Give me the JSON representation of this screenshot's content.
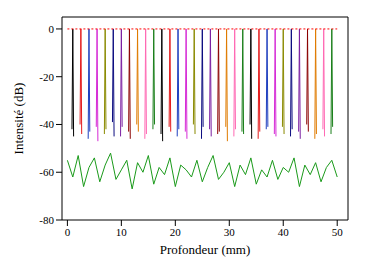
{
  "chart_data": {
    "type": "line",
    "x_label": "Profondeur (mm)",
    "y_label": "Intensité (dB)",
    "xlim": [
      -1,
      52
    ],
    "xticks": [
      0,
      10,
      20,
      30,
      40,
      50
    ],
    "ylim": [
      -80,
      5
    ],
    "yticks": [
      -80,
      -60,
      -40,
      -20,
      0
    ],
    "grid": false,
    "series": [
      {
        "color": "#1a9a1a",
        "x": [
          0,
          1,
          2,
          3,
          4,
          5,
          6,
          7,
          8,
          9,
          10,
          11,
          12,
          13,
          14,
          15,
          16,
          17,
          18,
          19,
          20,
          21,
          22,
          23,
          24,
          25,
          26,
          27,
          28,
          29,
          30,
          31,
          32,
          33,
          34,
          35,
          36,
          37,
          38,
          39,
          40,
          41,
          42,
          43,
          44,
          45,
          46,
          47,
          48,
          49,
          50
        ],
        "values": [
          -55,
          -62,
          -53,
          -66,
          -58,
          -54,
          -64,
          -57,
          -52,
          -63,
          -59,
          -55,
          -67,
          -56,
          -60,
          -53,
          -65,
          -58,
          -61,
          -54,
          -66,
          -57,
          -59,
          -62,
          -55,
          -64,
          -58,
          -53,
          -63,
          -60,
          -56,
          -66,
          -57,
          -61,
          -54,
          -65,
          -59,
          -62,
          -55,
          -63,
          -58,
          -60,
          -54,
          -66,
          -57,
          -61,
          -56,
          -64,
          -58,
          -55,
          -62
        ]
      },
      {
        "color": "#000000",
        "x": [
          0.85,
          1,
          1.15
        ],
        "values": [
          -42,
          0,
          -45
        ]
      },
      {
        "color": "#e41a1c",
        "x": [
          2.35,
          2.5,
          2.65
        ],
        "values": [
          -40,
          0,
          -44
        ]
      },
      {
        "color": "#1f3fbf",
        "x": [
          3.85,
          4,
          4.15
        ],
        "values": [
          -46,
          0,
          -43
        ]
      },
      {
        "color": "#d62ad6",
        "x": [
          5.35,
          5.5,
          5.65
        ],
        "values": [
          -41,
          0,
          -47
        ]
      },
      {
        "color": "#8a8a00",
        "x": [
          6.85,
          7,
          7.15
        ],
        "values": [
          -44,
          0,
          -42
        ]
      },
      {
        "color": "#0b0b80",
        "x": [
          8.35,
          8.5,
          8.65
        ],
        "values": [
          -39,
          0,
          -45
        ]
      },
      {
        "color": "#7b1fa2",
        "x": [
          9.85,
          10,
          10.15
        ],
        "values": [
          -45,
          0,
          -41
        ]
      },
      {
        "color": "#8b0000",
        "x": [
          11.35,
          11.5,
          11.65
        ],
        "values": [
          -43,
          0,
          -46
        ]
      },
      {
        "color": "#e07b00",
        "x": [
          12.85,
          13,
          13.15
        ],
        "values": [
          -40,
          0,
          -43
        ]
      },
      {
        "color": "#ff69b4",
        "x": [
          14.35,
          14.5,
          14.65
        ],
        "values": [
          -46,
          0,
          -44
        ]
      },
      {
        "color": "#1a7f1a",
        "x": [
          15.85,
          16,
          16.15
        ],
        "values": [
          -42,
          0,
          -40
        ]
      },
      {
        "color": "#000000",
        "x": [
          17.35,
          17.5,
          17.65
        ],
        "values": [
          -44,
          0,
          -47
        ]
      },
      {
        "color": "#e41a1c",
        "x": [
          18.85,
          19,
          19.15
        ],
        "values": [
          -41,
          0,
          -43
        ]
      },
      {
        "color": "#1f3fbf",
        "x": [
          20.35,
          20.5,
          20.65
        ],
        "values": [
          -45,
          0,
          -42
        ]
      },
      {
        "color": "#d62ad6",
        "x": [
          21.85,
          22,
          22.15
        ],
        "values": [
          -43,
          0,
          -46
        ]
      },
      {
        "color": "#8a8a00",
        "x": [
          23.35,
          23.5,
          23.65
        ],
        "values": [
          -40,
          0,
          -44
        ]
      },
      {
        "color": "#0b0b80",
        "x": [
          24.85,
          25,
          25.15
        ],
        "values": [
          -46,
          0,
          -41
        ]
      },
      {
        "color": "#7b1fa2",
        "x": [
          26.35,
          26.5,
          26.65
        ],
        "values": [
          -42,
          0,
          -45
        ]
      },
      {
        "color": "#8b0000",
        "x": [
          27.85,
          28,
          28.15
        ],
        "values": [
          -44,
          0,
          -43
        ]
      },
      {
        "color": "#e07b00",
        "x": [
          29.35,
          29.5,
          29.65
        ],
        "values": [
          -41,
          0,
          -47
        ]
      },
      {
        "color": "#ff69b4",
        "x": [
          30.85,
          31,
          31.15
        ],
        "values": [
          -45,
          0,
          -42
        ]
      },
      {
        "color": "#1a7f1a",
        "x": [
          32.35,
          32.5,
          32.65
        ],
        "values": [
          -43,
          0,
          -44
        ]
      },
      {
        "color": "#000000",
        "x": [
          33.85,
          34,
          34.15
        ],
        "values": [
          -40,
          0,
          -46
        ]
      },
      {
        "color": "#e41a1c",
        "x": [
          35.35,
          35.5,
          35.65
        ],
        "values": [
          -46,
          0,
          -43
        ]
      },
      {
        "color": "#1f3fbf",
        "x": [
          36.85,
          37,
          37.15
        ],
        "values": [
          -42,
          0,
          -41
        ]
      },
      {
        "color": "#d62ad6",
        "x": [
          38.35,
          38.5,
          38.65
        ],
        "values": [
          -44,
          0,
          -45
        ]
      },
      {
        "color": "#8a8a00",
        "x": [
          39.85,
          40,
          40.15
        ],
        "values": [
          -41,
          0,
          -44
        ]
      },
      {
        "color": "#0b0b80",
        "x": [
          41.35,
          41.5,
          41.65
        ],
        "values": [
          -45,
          0,
          -42
        ]
      },
      {
        "color": "#7b1fa2",
        "x": [
          42.85,
          43,
          43.15
        ],
        "values": [
          -43,
          0,
          -46
        ]
      },
      {
        "color": "#8b0000",
        "x": [
          44.35,
          44.5,
          44.65
        ],
        "values": [
          -40,
          0,
          -43
        ]
      },
      {
        "color": "#e07b00",
        "x": [
          45.85,
          46,
          46.15
        ],
        "values": [
          -46,
          0,
          -44
        ]
      },
      {
        "color": "#ff69b4",
        "x": [
          47.35,
          47.5,
          47.65
        ],
        "values": [
          -42,
          0,
          -45
        ]
      },
      {
        "color": "#1a7f1a",
        "x": [
          48.85,
          49,
          49.15
        ],
        "values": [
          -44,
          0,
          -41
        ]
      },
      {
        "color": "#ff0000",
        "line_style": "dotted",
        "x": [
          0,
          50
        ],
        "values": [
          0,
          0
        ]
      }
    ]
  }
}
